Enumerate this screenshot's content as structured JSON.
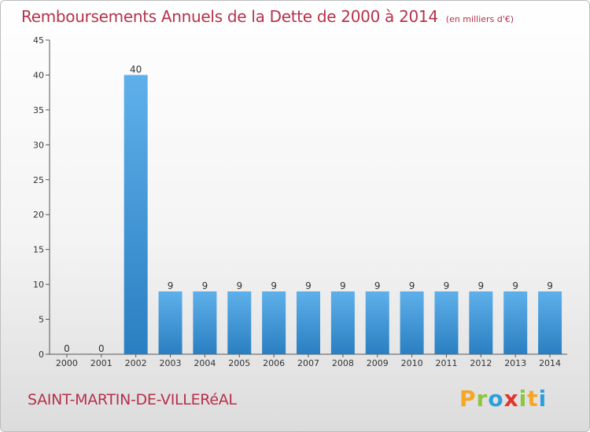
{
  "header": {
    "title": "Remboursements Annuels de la Dette de 2000 à 2014",
    "unit": "(en milliers d'€)"
  },
  "footer": {
    "commune": "SAINT-MARTIN-DE-VILLERéAL",
    "logo_letters": [
      "P",
      "r",
      "o",
      "x",
      "i",
      "t",
      "i"
    ],
    "logo_colors": [
      "#f5a623",
      "#8dc63f",
      "#2e9fd8",
      "#e2332c",
      "#8dc63f",
      "#f5a623",
      "#2e9fd8"
    ]
  },
  "chart_data": {
    "type": "bar",
    "categories": [
      "2000",
      "2001",
      "2002",
      "2003",
      "2004",
      "2005",
      "2006",
      "2007",
      "2008",
      "2009",
      "2010",
      "2011",
      "2012",
      "2013",
      "2014"
    ],
    "values": [
      0,
      0,
      40,
      9,
      9,
      9,
      9,
      9,
      9,
      9,
      9,
      9,
      9,
      9,
      9
    ],
    "data_labels": [
      "0",
      "0",
      "40",
      "9",
      "9",
      "9",
      "9",
      "9",
      "9",
      "9",
      "9",
      "9",
      "9",
      "9",
      "9"
    ],
    "ylim": [
      0,
      45
    ],
    "yticks": [
      0,
      5,
      10,
      15,
      20,
      25,
      30,
      35,
      40,
      45
    ],
    "xlabel": "",
    "ylabel": "",
    "grid": false,
    "bar_color_top": "#5fb0ea",
    "bar_color_bottom": "#2a7fc1"
  }
}
